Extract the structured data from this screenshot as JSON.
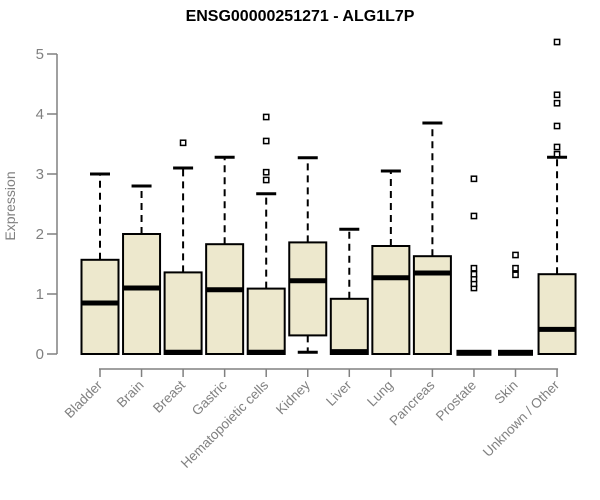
{
  "chart_data": {
    "type": "boxplot",
    "title": "ENSG00000251271 - ALG1L7P",
    "xlabel": "",
    "ylabel": "Expression",
    "ylim": [
      0,
      5
    ],
    "yticks": [
      0,
      1,
      2,
      3,
      4,
      5
    ],
    "grid": false,
    "legend": "none",
    "boxes": [
      {
        "category": "Bladder",
        "low": 0,
        "q1": 0,
        "median": 0.85,
        "q3": 1.57,
        "high": 3.0,
        "outliers": []
      },
      {
        "category": "Brain",
        "low": 0,
        "q1": 0,
        "median": 1.1,
        "q3": 2.0,
        "high": 2.8,
        "outliers": []
      },
      {
        "category": "Breast",
        "low": 0,
        "q1": 0,
        "median": 0.03,
        "q3": 1.36,
        "high": 3.1,
        "outliers": [
          3.52
        ]
      },
      {
        "category": "Gastric",
        "low": 0,
        "q1": 0,
        "median": 1.07,
        "q3": 1.83,
        "high": 3.28,
        "outliers": []
      },
      {
        "category": "Hematopoietic cells",
        "low": 0,
        "q1": 0,
        "median": 0.03,
        "q3": 1.09,
        "high": 2.67,
        "outliers": [
          2.9,
          3.03,
          3.55,
          3.95
        ]
      },
      {
        "category": "Kidney",
        "low": 0.03,
        "q1": 0.31,
        "median": 1.22,
        "q3": 1.86,
        "high": 3.27,
        "outliers": []
      },
      {
        "category": "Liver",
        "low": 0,
        "q1": 0,
        "median": 0.04,
        "q3": 0.92,
        "high": 2.08,
        "outliers": []
      },
      {
        "category": "Lung",
        "low": 0,
        "q1": 0,
        "median": 1.27,
        "q3": 1.8,
        "high": 3.05,
        "outliers": []
      },
      {
        "category": "Pancreas",
        "low": 0,
        "q1": 0,
        "median": 1.35,
        "q3": 1.63,
        "high": 3.85,
        "outliers": []
      },
      {
        "category": "Prostate",
        "low": 0.02,
        "q1": 0.02,
        "median": 0.02,
        "q3": 0.02,
        "high": 0.02,
        "outliers": [
          1.1,
          1.17,
          1.25,
          1.33,
          1.43,
          2.3,
          2.92
        ]
      },
      {
        "category": "Skin",
        "low": 0.02,
        "q1": 0.02,
        "median": 0.02,
        "q3": 0.02,
        "high": 0.02,
        "outliers": [
          1.32,
          1.43,
          1.65
        ]
      },
      {
        "category": "Unknown / Other",
        "low": 0,
        "q1": 0,
        "median": 0.41,
        "q3": 1.33,
        "high": 3.28,
        "outliers": [
          3.33,
          3.45,
          3.8,
          4.18,
          4.32,
          5.2
        ]
      }
    ]
  },
  "colors": {
    "box_fill": "#ede8cd",
    "box_border": "#000000",
    "median": "#000000",
    "whisker": "#000000",
    "outlier_stroke": "#000000",
    "outlier_fill": "#ffffff",
    "axis": "#808080",
    "title": "#000000",
    "background": "#ffffff"
  }
}
